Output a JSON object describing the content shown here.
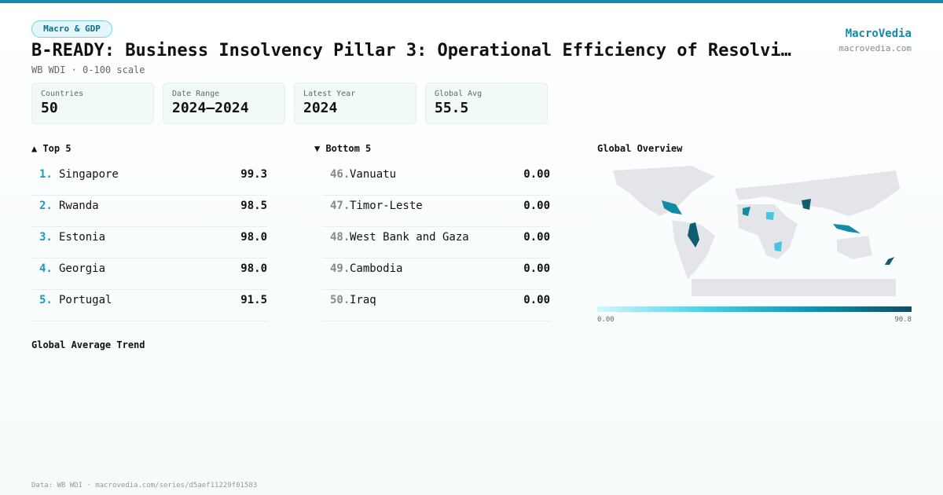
{
  "header": {
    "tag": "Macro & GDP",
    "title": "B-READY: Business Insolvency Pillar 3: Operational Efficiency of Resolvi…",
    "subtitle": "WB WDI · 0-100 scale",
    "brand": "MacroVedia",
    "site": "macrovedia.com"
  },
  "stats": [
    {
      "label": "Countries",
      "value": "50"
    },
    {
      "label": "Date Range",
      "value": "2024–2024"
    },
    {
      "label": "Latest Year",
      "value": "2024"
    },
    {
      "label": "Global Avg",
      "value": "55.5"
    }
  ],
  "top": {
    "title": "▲ Top 5",
    "rows": [
      {
        "rank": "1.",
        "name": "Singapore",
        "value": "99.3"
      },
      {
        "rank": "2.",
        "name": "Rwanda",
        "value": "98.5"
      },
      {
        "rank": "3.",
        "name": "Estonia",
        "value": "98.0"
      },
      {
        "rank": "4.",
        "name": "Georgia",
        "value": "98.0"
      },
      {
        "rank": "5.",
        "name": "Portugal",
        "value": "91.5"
      }
    ]
  },
  "bottom": {
    "title": "▼ Bottom 5",
    "rows": [
      {
        "rank": "46.",
        "name": "Vanuatu",
        "value": "0.00"
      },
      {
        "rank": "47.",
        "name": "Timor-Leste",
        "value": "0.00"
      },
      {
        "rank": "48.",
        "name": "West Bank and Gaza",
        "value": "0.00"
      },
      {
        "rank": "49.",
        "name": "Cambodia",
        "value": "0.00"
      },
      {
        "rank": "50.",
        "name": "Iraq",
        "value": "0.00"
      }
    ]
  },
  "map": {
    "title": "Global Overview",
    "min_label": "0.00",
    "max_label": "90.8"
  },
  "trend": {
    "title": "Global Average Trend"
  },
  "footer": "Data: WB WDI · macrovedia.com/series/d5aef11229f01583"
}
